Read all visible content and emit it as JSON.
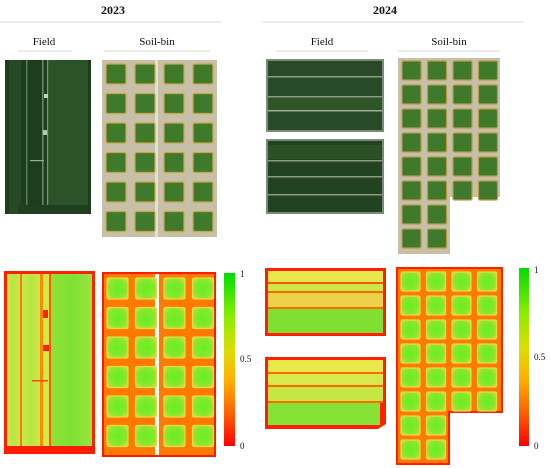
{
  "figure": {
    "years": [
      "2023",
      "2024"
    ],
    "field_label": "Field",
    "soil_bin_label": "Soil-bin",
    "colorbar": {
      "ticks": [
        "1",
        "0.5",
        "0"
      ],
      "colors": [
        "#00dd00",
        "#88ee00",
        "#dddd00",
        "#ffb000",
        "#ff6600",
        "#ff0000"
      ]
    },
    "colors": {
      "rgb_dark": "#1d3d1d",
      "rgb_mid": "#2f5a2a",
      "plant_green": "#3f7a2c",
      "soil_tan": "#c9c1a8",
      "ndvi_high": "#55ee22",
      "ndvi_mid": "#d7e84a",
      "ndvi_low": "#ff4400",
      "ndvi_edge": "#ff1a00"
    }
  }
}
